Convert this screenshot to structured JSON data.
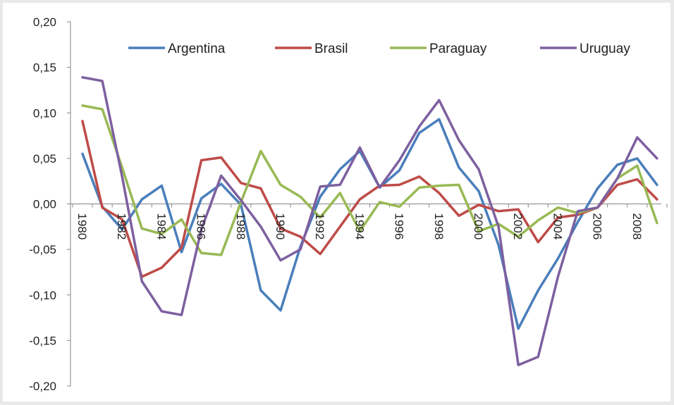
{
  "chart_data": {
    "type": "line",
    "title": "",
    "xlabel": "",
    "ylabel": "",
    "ylim": [
      -0.2,
      0.2
    ],
    "y_ticks": [
      "0,20",
      "0,15",
      "0,10",
      "0,05",
      "0,00",
      "-0,05",
      "-0,10",
      "-0,15",
      "-0,20"
    ],
    "y_tick_values": [
      0.2,
      0.15,
      0.1,
      0.05,
      0.0,
      -0.05,
      -0.1,
      -0.15,
      -0.2
    ],
    "x_tick_labels": [
      "1980",
      "1982",
      "1984",
      "1986",
      "1988",
      "1990",
      "1992",
      "1994",
      "1996",
      "1998",
      "2000",
      "2002",
      "2004",
      "2006",
      "2008"
    ],
    "x": [
      1980,
      1981,
      1982,
      1983,
      1984,
      1985,
      1986,
      1987,
      1988,
      1989,
      1990,
      1991,
      1992,
      1993,
      1994,
      1995,
      1996,
      1997,
      1998,
      1999,
      2000,
      2001,
      2002,
      2003,
      2004,
      2005,
      2006,
      2007,
      2008,
      2009
    ],
    "grid": false,
    "legend_position": "top",
    "series": [
      {
        "name": "Argentina",
        "color": "#4a7ebb",
        "values": [
          0.055,
          -0.003,
          -0.028,
          0.005,
          0.02,
          -0.053,
          0.006,
          0.022,
          -0.001,
          -0.095,
          -0.117,
          -0.047,
          0.008,
          0.038,
          0.058,
          0.018,
          0.037,
          0.078,
          0.093,
          0.04,
          0.014,
          -0.045,
          -0.137,
          -0.095,
          -0.06,
          -0.02,
          0.017,
          0.043,
          0.05,
          0.021
        ]
      },
      {
        "name": "Brasil",
        "color": "#be4b48",
        "values": [
          0.091,
          -0.004,
          -0.017,
          -0.08,
          -0.07,
          -0.048,
          0.048,
          0.051,
          0.023,
          0.017,
          -0.027,
          -0.036,
          -0.055,
          -0.025,
          0.005,
          0.02,
          0.021,
          0.03,
          0.012,
          -0.013,
          -0.001,
          -0.008,
          -0.006,
          -0.042,
          -0.015,
          -0.012,
          -0.004,
          0.021,
          0.027,
          0.005
        ]
      },
      {
        "name": "Paraguay",
        "color": "#98b954",
        "values": [
          0.108,
          0.104,
          0.04,
          -0.027,
          -0.033,
          -0.017,
          -0.054,
          -0.056,
          0.002,
          0.058,
          0.021,
          0.008,
          -0.015,
          0.012,
          -0.03,
          0.002,
          -0.003,
          0.018,
          0.02,
          0.021,
          -0.03,
          -0.022,
          -0.036,
          -0.018,
          -0.004,
          -0.01,
          -0.004,
          0.028,
          0.042,
          -0.021
        ]
      },
      {
        "name": "Uruguay",
        "color": "#7d60a0",
        "values": [
          0.139,
          0.135,
          0.03,
          -0.085,
          -0.118,
          -0.122,
          -0.028,
          0.031,
          0.004,
          -0.025,
          -0.062,
          -0.05,
          0.019,
          0.021,
          0.062,
          0.018,
          0.048,
          0.085,
          0.114,
          0.07,
          0.038,
          -0.025,
          -0.177,
          -0.168,
          -0.08,
          -0.008,
          -0.004,
          0.028,
          0.073,
          0.05
        ]
      }
    ]
  }
}
